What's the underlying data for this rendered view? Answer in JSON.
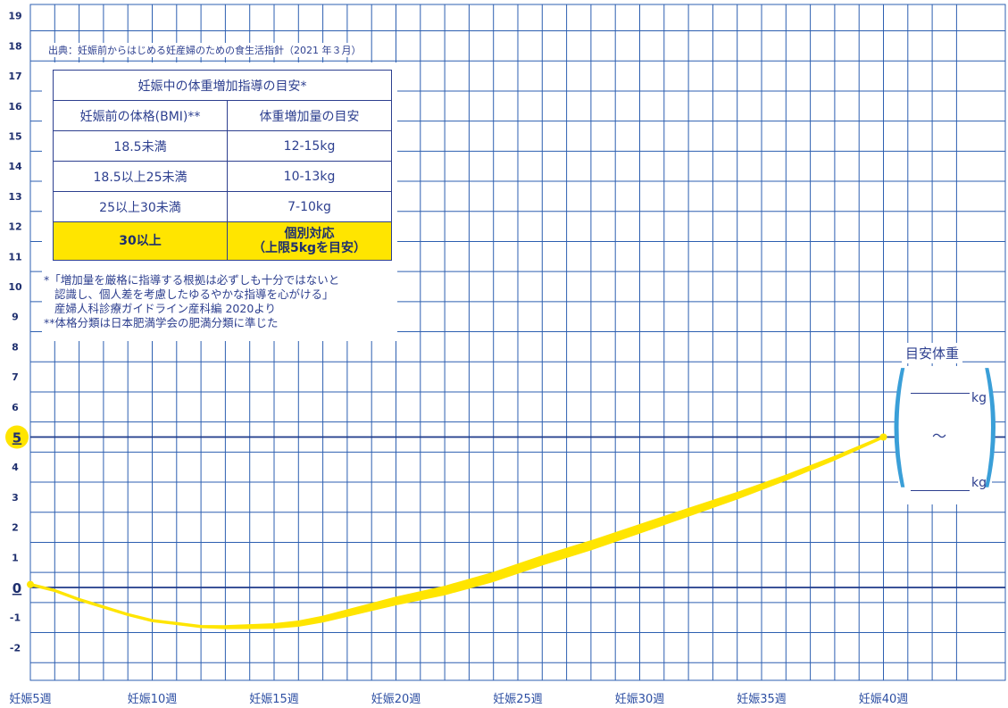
{
  "source_note": "出典：妊娠前からはじめる妊産婦のための食生活指針（2021 年３月）",
  "weight_table": {
    "title": "妊娠中の体重増加指導の目安*",
    "col1_header": "妊娠前の体格(BMI)**",
    "col2_header": "体重増加量の目安",
    "rows": [
      {
        "bmi": "18.5未満",
        "gain": "12-15kg"
      },
      {
        "bmi": "18.5以上25未満",
        "gain": "10-13kg"
      },
      {
        "bmi": "25以上30未満",
        "gain": "7-10kg"
      }
    ],
    "highlight_row": {
      "bmi": "30以上",
      "gain_line1": "個別対応",
      "gain_line2": "（上限5kgを目安）"
    },
    "highlight_color": "#ffe500"
  },
  "notes": {
    "line1": "*「増加量を厳格に指導する根拠は必ずしも十分ではないと",
    "line2": "認識し、個人差を考慮したゆるやかな指導を心がける」",
    "line3": "産婦人科診療ガイドライン産科編 2020より",
    "line4": "**体格分類は日本肥満学会の肥満分類に準じた"
  },
  "target_weight": {
    "label": "目安体重",
    "unit_top": "kg",
    "range_symbol": "～",
    "unit_bottom": "kg",
    "bracket_color": "#3a9fd8"
  },
  "colors": {
    "grid": "#2d5fb0",
    "curve": "#ffe500",
    "label": "#1e2f6e"
  },
  "chart_data": {
    "type": "line",
    "x_tick_labels": [
      "妊娠5週",
      "妊娠10週",
      "妊娠15週",
      "妊娠20週",
      "妊娠25週",
      "妊娠30週",
      "妊娠35週",
      "妊娠40週"
    ],
    "x_ticks": [
      5,
      10,
      15,
      20,
      25,
      30,
      35,
      40
    ],
    "xlim": [
      5,
      43
    ],
    "y_ticks": [
      -2,
      -1,
      0,
      1,
      2,
      3,
      4,
      5,
      6,
      7,
      8,
      9,
      10,
      11,
      12,
      13,
      14,
      15,
      16,
      17,
      18,
      19
    ],
    "ylim": [
      -3,
      19
    ],
    "highlight_y": [
      0,
      5
    ],
    "grid": true,
    "series": [
      {
        "x": [
          5,
          6,
          7,
          8,
          9,
          10,
          11,
          12,
          13,
          14,
          15,
          16,
          17,
          18,
          19,
          20,
          22,
          24,
          26,
          28,
          30,
          32,
          34,
          36,
          38,
          40
        ],
        "y": [
          0.1,
          -0.1,
          -0.4,
          -0.65,
          -0.9,
          -1.1,
          -1.2,
          -1.3,
          -1.32,
          -1.3,
          -1.28,
          -1.2,
          -1.05,
          -0.85,
          -0.65,
          -0.45,
          -0.1,
          0.35,
          0.9,
          1.4,
          1.95,
          2.5,
          3.05,
          3.65,
          4.3,
          5.0
        ]
      }
    ]
  }
}
